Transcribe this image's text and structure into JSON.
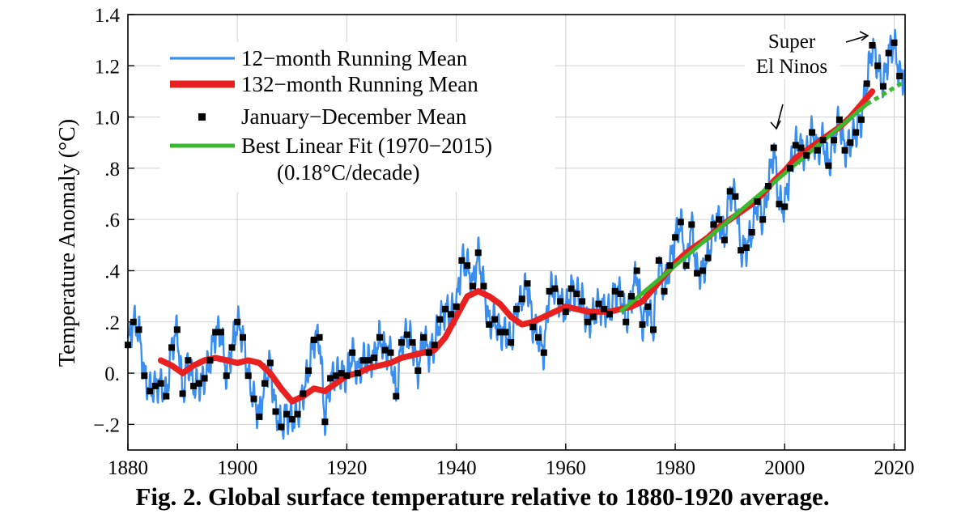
{
  "caption": "Fig. 2.  Global surface temperature relative to 1880-1920 average.",
  "chart_data": {
    "type": "line",
    "title": "",
    "xlabel": "",
    "ylabel": "Temperature Anomaly (°C)",
    "xlim": [
      1880,
      2022
    ],
    "ylim": [
      -0.3,
      1.4
    ],
    "x_ticks": [
      1880,
      1900,
      1920,
      1940,
      1960,
      1980,
      2000,
      2020
    ],
    "x_tick_labels": [
      "1880",
      "1900",
      "1920",
      "1940",
      "1960",
      "1980",
      "2000",
      "2020"
    ],
    "y_ticks": [
      -0.2,
      0.0,
      0.2,
      0.4,
      0.6,
      0.8,
      1.0,
      1.2,
      1.4
    ],
    "y_tick_labels": [
      "−.2",
      "0.",
      ".2",
      ".4",
      ".6",
      ".8",
      "1.0",
      "1.2",
      "1.4"
    ],
    "grid": true,
    "legend_position": "top-left",
    "legend": [
      {
        "label": "12−month Running Mean",
        "color": "#3a8ef0",
        "style": "line"
      },
      {
        "label": "132−month Running Mean",
        "color": "#e82020",
        "style": "thick-line"
      },
      {
        "label": "January−December Mean",
        "color": "#000000",
        "style": "square"
      },
      {
        "label": "Best Linear Fit (1970−2015)",
        "color": "#3cb830",
        "style": "line"
      }
    ],
    "legend_note": "(0.18°C/decade)",
    "annotations": [
      {
        "text": "Super",
        "x": 1998,
        "y": 1.28
      },
      {
        "text": "El Ninos",
        "x": 1998,
        "y": 1.19
      }
    ],
    "series": [
      {
        "name": "January−December Mean",
        "x": [
          1880,
          1881,
          1882,
          1883,
          1884,
          1885,
          1886,
          1887,
          1888,
          1889,
          1890,
          1891,
          1892,
          1893,
          1894,
          1895,
          1896,
          1897,
          1898,
          1899,
          1900,
          1901,
          1902,
          1903,
          1904,
          1905,
          1906,
          1907,
          1908,
          1909,
          1910,
          1911,
          1912,
          1913,
          1914,
          1915,
          1916,
          1917,
          1918,
          1919,
          1920,
          1921,
          1922,
          1923,
          1924,
          1925,
          1926,
          1927,
          1928,
          1929,
          1930,
          1931,
          1932,
          1933,
          1934,
          1935,
          1936,
          1937,
          1938,
          1939,
          1940,
          1941,
          1942,
          1943,
          1944,
          1945,
          1946,
          1947,
          1948,
          1949,
          1950,
          1951,
          1952,
          1953,
          1954,
          1955,
          1956,
          1957,
          1958,
          1959,
          1960,
          1961,
          1962,
          1963,
          1964,
          1965,
          1966,
          1967,
          1968,
          1969,
          1970,
          1971,
          1972,
          1973,
          1974,
          1975,
          1976,
          1977,
          1978,
          1979,
          1980,
          1981,
          1982,
          1983,
          1984,
          1985,
          1986,
          1987,
          1988,
          1989,
          1990,
          1991,
          1992,
          1993,
          1994,
          1995,
          1996,
          1997,
          1998,
          1999,
          2000,
          2001,
          2002,
          2003,
          2004,
          2005,
          2006,
          2007,
          2008,
          2009,
          2010,
          2011,
          2012,
          2013,
          2014,
          2015,
          2016,
          2017,
          2018,
          2019,
          2020,
          2021
        ],
        "y": [
          0.11,
          0.2,
          0.17,
          -0.01,
          -0.07,
          -0.05,
          -0.04,
          -0.09,
          0.1,
          0.17,
          -0.08,
          0.05,
          -0.05,
          -0.04,
          -0.02,
          0.05,
          0.16,
          0.16,
          -0.01,
          0.1,
          0.2,
          0.14,
          -0.01,
          -0.1,
          -0.17,
          -0.04,
          0.04,
          -0.15,
          -0.21,
          -0.16,
          -0.18,
          -0.16,
          -0.08,
          0.01,
          0.13,
          0.14,
          -0.19,
          -0.02,
          -0.01,
          0.0,
          -0.01,
          0.08,
          0.0,
          0.05,
          0.05,
          0.06,
          0.14,
          0.09,
          0.08,
          -0.09,
          0.12,
          0.15,
          0.12,
          0.01,
          0.14,
          0.08,
          0.11,
          0.21,
          0.25,
          0.23,
          0.26,
          0.44,
          0.42,
          0.34,
          0.47,
          0.34,
          0.19,
          0.21,
          0.16,
          0.16,
          0.12,
          0.25,
          0.29,
          0.35,
          0.18,
          0.14,
          0.08,
          0.32,
          0.33,
          0.28,
          0.24,
          0.33,
          0.31,
          0.28,
          0.2,
          0.22,
          0.27,
          0.25,
          0.23,
          0.32,
          0.31,
          0.2,
          0.3,
          0.4,
          0.19,
          0.26,
          0.17,
          0.44,
          0.32,
          0.42,
          0.53,
          0.59,
          0.42,
          0.58,
          0.39,
          0.4,
          0.45,
          0.58,
          0.6,
          0.52,
          0.71,
          0.69,
          0.48,
          0.49,
          0.55,
          0.67,
          0.6,
          0.73,
          0.88,
          0.66,
          0.65,
          0.8,
          0.89,
          0.88,
          0.85,
          0.94,
          0.87,
          0.91,
          0.81,
          0.91,
          0.99,
          0.87,
          0.9,
          0.94,
          0.99,
          1.13,
          1.28,
          1.2,
          1.12,
          1.25,
          1.29,
          1.16
        ]
      },
      {
        "name": "132−month Running Mean",
        "x": [
          1886,
          1888,
          1890,
          1892,
          1894,
          1896,
          1898,
          1900,
          1902,
          1904,
          1906,
          1908,
          1910,
          1912,
          1914,
          1916,
          1918,
          1920,
          1922,
          1924,
          1926,
          1928,
          1930,
          1932,
          1934,
          1936,
          1938,
          1940,
          1942,
          1944,
          1946,
          1948,
          1950,
          1952,
          1954,
          1956,
          1958,
          1960,
          1962,
          1964,
          1966,
          1968,
          1970,
          1972,
          1974,
          1976,
          1978,
          1980,
          1982,
          1984,
          1986,
          1988,
          1990,
          1992,
          1994,
          1996,
          1998,
          2000,
          2002,
          2004,
          2006,
          2008,
          2010,
          2012,
          2014,
          2016
        ],
        "y": [
          0.05,
          0.03,
          0.0,
          0.03,
          0.05,
          0.06,
          0.05,
          0.04,
          0.05,
          0.04,
          0.0,
          -0.06,
          -0.11,
          -0.09,
          -0.06,
          -0.07,
          -0.04,
          -0.01,
          0.0,
          0.02,
          0.03,
          0.04,
          0.06,
          0.07,
          0.08,
          0.09,
          0.14,
          0.22,
          0.3,
          0.32,
          0.3,
          0.27,
          0.22,
          0.19,
          0.2,
          0.22,
          0.24,
          0.26,
          0.25,
          0.24,
          0.24,
          0.24,
          0.25,
          0.26,
          0.28,
          0.33,
          0.38,
          0.43,
          0.47,
          0.5,
          0.53,
          0.57,
          0.6,
          0.63,
          0.66,
          0.7,
          0.75,
          0.79,
          0.84,
          0.87,
          0.9,
          0.93,
          0.96,
          1.0,
          1.05,
          1.1
        ]
      },
      {
        "name": "Best Linear Fit (1970−2015)",
        "x": [
          1970,
          2015
        ],
        "y": [
          0.24,
          1.05
        ]
      },
      {
        "name": "Linear Fit Extension",
        "x": [
          2015,
          2022
        ],
        "y": [
          1.05,
          1.14
        ]
      }
    ]
  }
}
